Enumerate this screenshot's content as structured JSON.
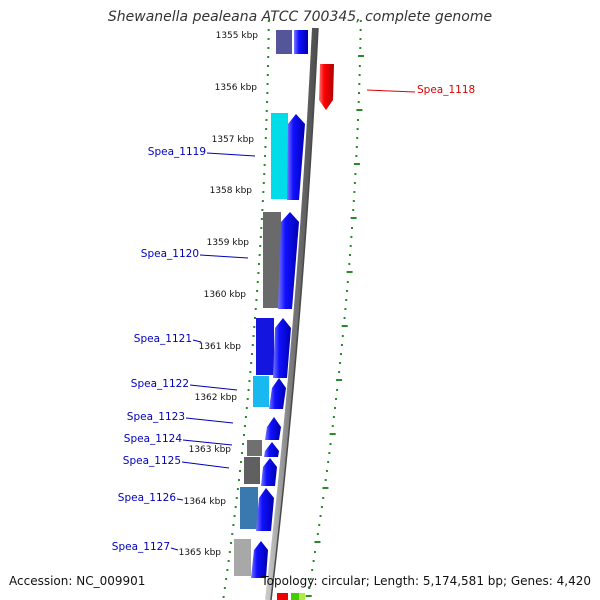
{
  "title": "Shewanella pealeana ATCC 700345, complete genome",
  "ruler": {
    "ticks": [
      "1355 kbp",
      "1356 kbp",
      "1357 kbp",
      "1358 kbp",
      "1359 kbp",
      "1360 kbp",
      "1361 kbp",
      "1362 kbp",
      "1363 kbp",
      "1364 kbp",
      "1365 kbp"
    ]
  },
  "genes": [
    {
      "label": "Spea_1118",
      "strand": "reverse",
      "color": "#ee0000"
    },
    {
      "label": "Spea_1119",
      "strand": "forward",
      "color": "#0000cc"
    },
    {
      "label": "Spea_1120",
      "strand": "forward",
      "color": "#0000cc"
    },
    {
      "label": "Spea_1121",
      "strand": "forward",
      "color": "#0000cc"
    },
    {
      "label": "Spea_1122",
      "strand": "forward",
      "color": "#0000cc"
    },
    {
      "label": "Spea_1123",
      "strand": "forward",
      "color": "#0000cc"
    },
    {
      "label": "Spea_1124",
      "strand": "forward",
      "color": "#0000cc"
    },
    {
      "label": "Spea_1125",
      "strand": "forward",
      "color": "#0000cc"
    },
    {
      "label": "Spea_1126",
      "strand": "forward",
      "color": "#0000cc"
    },
    {
      "label": "Spea_1127",
      "strand": "forward",
      "color": "#0000cc"
    }
  ],
  "cog_colors": [
    "#5a5a9a",
    "#00d8e6",
    "#6a6a6a",
    "#1010e0",
    "#18b8f0",
    "#2030e0",
    "#707070",
    "#606060",
    "#3a78b0",
    "#aaaaaa"
  ],
  "footer": {
    "accession": "Accession: NC_009901",
    "summary": "Topology: circular; Length: 5,174,581 bp; Genes: 4,420"
  }
}
